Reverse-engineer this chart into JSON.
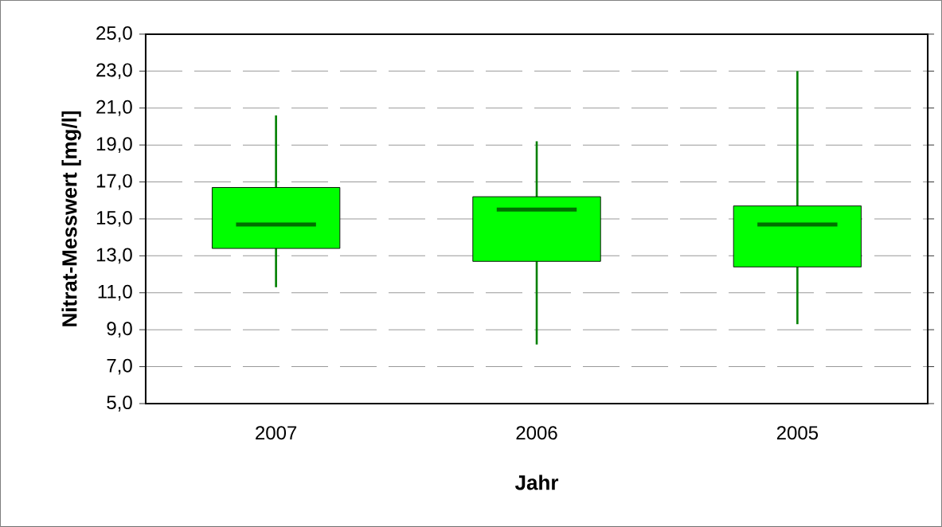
{
  "chart_data": {
    "type": "box",
    "xlabel": "Jahr",
    "ylabel": "Nitrat-Messwert [mg/l]",
    "categories": [
      "2007",
      "2006",
      "2005"
    ],
    "series": [
      {
        "color": "#00ff00",
        "boxes": [
          {
            "low": 11.3,
            "q1": 13.4,
            "median": 14.7,
            "q3": 16.7,
            "high": 20.6
          },
          {
            "low": 8.2,
            "q1": 12.7,
            "median": 15.5,
            "q3": 16.2,
            "high": 19.2
          },
          {
            "low": 9.3,
            "q1": 12.4,
            "median": 14.7,
            "q3": 15.7,
            "high": 23.0
          }
        ]
      }
    ],
    "ylim": [
      5,
      25
    ],
    "yticks": [
      {
        "value": 5,
        "label": "5,0"
      },
      {
        "value": 7,
        "label": "7,0"
      },
      {
        "value": 9,
        "label": "9,0"
      },
      {
        "value": 11,
        "label": "11,0"
      },
      {
        "value": 13,
        "label": "13,0"
      },
      {
        "value": 15,
        "label": "15,0"
      },
      {
        "value": 17,
        "label": "17,0"
      },
      {
        "value": 19,
        "label": "19,0"
      },
      {
        "value": 21,
        "label": "21,0"
      },
      {
        "value": 23,
        "label": "23,0"
      },
      {
        "value": 25,
        "label": "25,0"
      }
    ],
    "grid": "y"
  }
}
